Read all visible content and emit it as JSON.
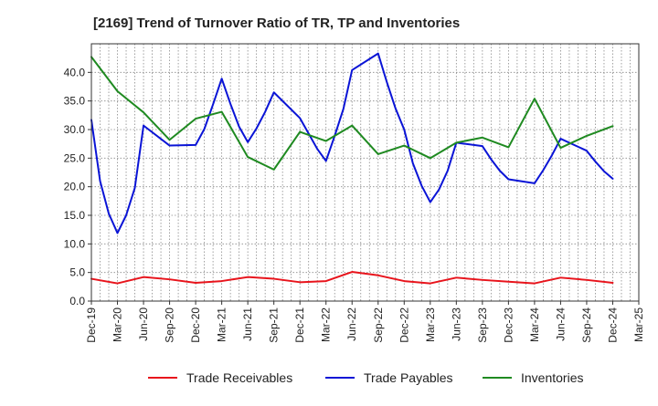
{
  "chart_data": {
    "type": "line",
    "title": "[2169]  Trend of Turnover Ratio of TR, TP and Inventories",
    "xlabel": "",
    "ylabel": "",
    "ylim": [
      0,
      45
    ],
    "yticks": [
      0.0,
      5.0,
      10.0,
      15.0,
      20.0,
      25.0,
      30.0,
      35.0,
      40.0
    ],
    "ytick_labels": [
      "0.0",
      "5.0",
      "10.0",
      "15.0",
      "20.0",
      "25.0",
      "30.0",
      "35.0",
      "40.0"
    ],
    "xtick_labels": [
      "Dec-19",
      "Mar-20",
      "Jun-20",
      "Sep-20",
      "Dec-20",
      "Mar-21",
      "Jun-21",
      "Sep-21",
      "Dec-21",
      "Mar-22",
      "Jun-22",
      "Sep-22",
      "Dec-22",
      "Mar-23",
      "Jun-23",
      "Sep-23",
      "Dec-23",
      "Mar-24",
      "Jun-24",
      "Sep-24",
      "Dec-24",
      "Mar-25"
    ],
    "x_months": [
      "2019-12",
      "2020-01",
      "2020-02",
      "2020-03",
      "2020-04",
      "2020-05",
      "2020-06",
      "2020-07",
      "2020-08",
      "2020-09",
      "2020-10",
      "2020-11",
      "2020-12",
      "2021-01",
      "2021-02",
      "2021-03",
      "2021-04",
      "2021-05",
      "2021-06",
      "2021-07",
      "2021-08",
      "2021-09",
      "2021-10",
      "2021-11",
      "2021-12",
      "2022-01",
      "2022-02",
      "2022-03",
      "2022-04",
      "2022-05",
      "2022-06",
      "2022-07",
      "2022-08",
      "2022-09",
      "2022-10",
      "2022-11",
      "2022-12",
      "2023-01",
      "2023-02",
      "2023-03",
      "2023-04",
      "2023-05",
      "2023-06",
      "2023-07",
      "2023-08",
      "2023-09",
      "2023-10",
      "2023-11",
      "2023-12",
      "2024-01",
      "2024-02",
      "2024-03",
      "2024-04",
      "2024-05",
      "2024-06",
      "2024-07",
      "2024-08",
      "2024-09",
      "2024-10",
      "2024-11",
      "2024-12",
      "2025-01",
      "2025-02",
      "2025-03"
    ],
    "grid": true,
    "legend_position": "bottom",
    "series": [
      {
        "name": "Trade Receivables",
        "color": "#e8141c",
        "points": [
          [
            "2019-12",
            3.9
          ],
          [
            "2020-03",
            3.1
          ],
          [
            "2020-06",
            4.2
          ],
          [
            "2020-09",
            3.8
          ],
          [
            "2020-12",
            3.2
          ],
          [
            "2021-03",
            3.5
          ],
          [
            "2021-06",
            4.2
          ],
          [
            "2021-09",
            3.9
          ],
          [
            "2021-12",
            3.3
          ],
          [
            "2022-03",
            3.5
          ],
          [
            "2022-06",
            5.1
          ],
          [
            "2022-09",
            4.5
          ],
          [
            "2022-12",
            3.5
          ],
          [
            "2023-03",
            3.1
          ],
          [
            "2023-06",
            4.1
          ],
          [
            "2023-09",
            3.7
          ],
          [
            "2023-12",
            3.4
          ],
          [
            "2024-03",
            3.1
          ],
          [
            "2024-06",
            4.1
          ],
          [
            "2024-09",
            3.7
          ],
          [
            "2024-12",
            3.2
          ]
        ]
      },
      {
        "name": "Trade Payables",
        "color": "#0a14d6",
        "points": [
          [
            "2019-12",
            31.7
          ],
          [
            "2020-01",
            21.0
          ],
          [
            "2020-02",
            15.3
          ],
          [
            "2020-03",
            11.9
          ],
          [
            "2020-04",
            15.0
          ],
          [
            "2020-05",
            19.8
          ],
          [
            "2020-06",
            30.7
          ],
          [
            "2020-09",
            27.2
          ],
          [
            "2020-12",
            27.3
          ],
          [
            "2021-01",
            30.1
          ],
          [
            "2021-02",
            34.4
          ],
          [
            "2021-03",
            38.9
          ],
          [
            "2021-04",
            34.5
          ],
          [
            "2021-05",
            30.5
          ],
          [
            "2021-06",
            27.8
          ],
          [
            "2021-07",
            30.2
          ],
          [
            "2021-08",
            33.1
          ],
          [
            "2021-09",
            36.5
          ],
          [
            "2021-12",
            32.0
          ],
          [
            "2022-01",
            29.3
          ],
          [
            "2022-02",
            26.6
          ],
          [
            "2022-03",
            24.5
          ],
          [
            "2022-04",
            28.9
          ],
          [
            "2022-05",
            33.6
          ],
          [
            "2022-06",
            40.4
          ],
          [
            "2022-09",
            43.3
          ],
          [
            "2022-10",
            38.3
          ],
          [
            "2022-11",
            33.7
          ],
          [
            "2022-12",
            30.0
          ],
          [
            "2023-01",
            24.1
          ],
          [
            "2023-02",
            20.2
          ],
          [
            "2023-03",
            17.3
          ],
          [
            "2023-04",
            19.5
          ],
          [
            "2023-05",
            22.8
          ],
          [
            "2023-06",
            27.7
          ],
          [
            "2023-09",
            27.1
          ],
          [
            "2023-10",
            24.8
          ],
          [
            "2023-11",
            22.8
          ],
          [
            "2023-12",
            21.3
          ],
          [
            "2024-03",
            20.6
          ],
          [
            "2024-04",
            22.9
          ],
          [
            "2024-05",
            25.5
          ],
          [
            "2024-06",
            28.4
          ],
          [
            "2024-09",
            26.3
          ],
          [
            "2024-10",
            24.4
          ],
          [
            "2024-11",
            22.7
          ],
          [
            "2024-12",
            21.4
          ]
        ]
      },
      {
        "name": "Inventories",
        "color": "#1f8a21",
        "points": [
          [
            "2019-12",
            42.7
          ],
          [
            "2020-03",
            36.7
          ],
          [
            "2020-06",
            33.0
          ],
          [
            "2020-09",
            28.2
          ],
          [
            "2020-12",
            31.9
          ],
          [
            "2021-03",
            33.1
          ],
          [
            "2021-06",
            25.2
          ],
          [
            "2021-09",
            23.0
          ],
          [
            "2021-12",
            29.6
          ],
          [
            "2022-03",
            28.0
          ],
          [
            "2022-06",
            30.7
          ],
          [
            "2022-09",
            25.7
          ],
          [
            "2022-12",
            27.2
          ],
          [
            "2023-03",
            25.0
          ],
          [
            "2023-06",
            27.7
          ],
          [
            "2023-09",
            28.6
          ],
          [
            "2023-12",
            26.9
          ],
          [
            "2024-03",
            35.4
          ],
          [
            "2024-06",
            26.8
          ],
          [
            "2024-09",
            28.9
          ],
          [
            "2024-12",
            30.6
          ]
        ]
      }
    ]
  }
}
